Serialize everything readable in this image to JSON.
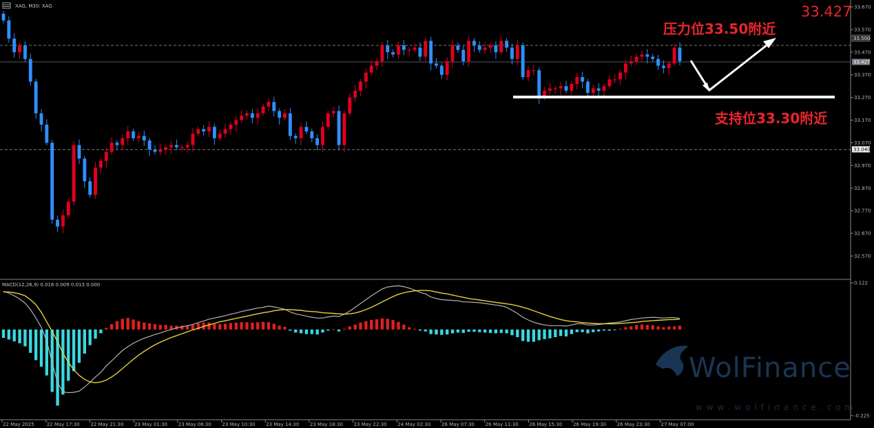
{
  "header": {
    "symbol_label": "XAG, M30: XAG"
  },
  "big_price": "33.427",
  "annotations": {
    "resistance": "压力位33.50附近",
    "support": "支持位33.30附近"
  },
  "price_tags": {
    "resistance_tag": "33.500",
    "current_tag": "33.427",
    "low_tag": "33.040"
  },
  "macd_label": "MACD(12,26,9) 0.016 0.009 0.013 0.000",
  "watermark": {
    "brand": "WolFinance",
    "site": "www.wolfinance.com"
  },
  "colors": {
    "bull": "#e1001e",
    "bear": "#2f8fff",
    "macd_pos": "#e0201e",
    "macd_neg": "#3ad8e0",
    "signal": "#e6d23c",
    "macd_line": "#b4b4b4"
  },
  "chart_data": [
    {
      "type": "candlestick",
      "symbol": "XAG",
      "timeframe": "M30",
      "ylim": [
        32.5,
        33.67
      ],
      "yticks": [
        33.67,
        33.57,
        33.47,
        33.37,
        33.27,
        33.17,
        33.07,
        32.97,
        32.87,
        32.77,
        32.67,
        32.57
      ],
      "ytick_labels": [
        "33.670",
        "33.570",
        "33.470",
        "33.370",
        "33.270",
        "33.170",
        "33.070",
        "32.970",
        "32.870",
        "32.770",
        "32.670",
        "32.570"
      ],
      "xtick_labels": [
        "22 May 2025",
        "22 May 17:30",
        "22 May 21:30",
        "23 May 01:30",
        "23 May 06:30",
        "23 May 10:30",
        "23 May 14:30",
        "23 May 18:30",
        "23 May 22:30",
        "24 May 02:30",
        "26 May 07:30",
        "26 May 11:30",
        "26 May 15:30",
        "26 May 19:30",
        "26 May 23:30",
        "27 May 07:00"
      ],
      "levels": {
        "resistance": 33.5,
        "current": 33.427,
        "low": 33.04,
        "support": 33.285
      },
      "close": [
        33.61,
        33.53,
        33.47,
        33.5,
        33.44,
        33.34,
        33.2,
        33.15,
        33.07,
        32.73,
        32.7,
        32.75,
        32.81,
        33.06,
        33,
        32.9,
        32.84,
        32.96,
        32.99,
        33.03,
        33.07,
        33.06,
        33.09,
        33.12,
        33.09,
        33.1,
        33.08,
        33.04,
        33.03,
        33.04,
        33.05,
        33.06,
        33.05,
        33.05,
        33.06,
        33.11,
        33.13,
        33.12,
        33.14,
        33.09,
        33.11,
        33.13,
        33.15,
        33.17,
        33.19,
        33.2,
        33.18,
        33.2,
        33.23,
        33.25,
        33.21,
        33.18,
        33.2,
        33.1,
        33.09,
        33.14,
        33.12,
        33.09,
        33.06,
        33.14,
        33.2,
        33.21,
        33.06,
        33.2,
        33.27,
        33.3,
        33.34,
        33.38,
        33.41,
        33.43,
        33.5,
        33.47,
        33.46,
        33.5,
        33.48,
        33.48,
        33.49,
        33.45,
        33.52,
        33.42,
        33.41,
        33.37,
        33.43,
        33.5,
        33.48,
        33.43,
        33.52,
        33.5,
        33.48,
        33.49,
        33.5,
        33.47,
        33.52,
        33.49,
        33.44,
        33.5,
        33.36,
        33.39,
        33.39,
        33.27,
        33.3,
        33.31,
        33.31,
        33.32,
        33.3,
        33.33,
        33.36,
        33.34,
        33.29,
        33.31,
        33.3,
        33.32,
        33.35,
        33.35,
        33.38,
        33.42,
        33.43,
        33.45,
        33.46,
        33.45,
        33.44,
        33.41,
        33.4,
        33.42,
        33.49,
        33.43
      ],
      "macd": {
        "ylim": [
          -0.225,
          0.122
        ],
        "yticks": [
          0.122,
          -0.225
        ],
        "ytick_labels": [
          "0.122",
          "-0.225"
        ],
        "histogram": [
          -0.022,
          -0.026,
          -0.031,
          -0.036,
          -0.044,
          -0.061,
          -0.08,
          -0.097,
          -0.12,
          -0.163,
          -0.199,
          -0.17,
          -0.134,
          -0.109,
          -0.087,
          -0.063,
          -0.041,
          -0.024,
          -0.01,
          0.004,
          0.014,
          0.022,
          0.028,
          0.03,
          0.026,
          0.022,
          0.018,
          0.016,
          0.014,
          0.012,
          0.012,
          0.01,
          0.01,
          0.01,
          0.01,
          0.012,
          0.016,
          0.018,
          0.018,
          0.014,
          0.014,
          0.015,
          0.017,
          0.018,
          0.019,
          0.019,
          0.018,
          0.019,
          0.02,
          0.019,
          0.015,
          0.01,
          0.007,
          -0.003,
          -0.008,
          -0.01,
          -0.012,
          -0.012,
          -0.013,
          -0.008,
          -0.003,
          0.001,
          -0.005,
          0.002,
          0.008,
          0.013,
          0.018,
          0.022,
          0.025,
          0.027,
          0.029,
          0.028,
          0.025,
          0.02,
          0.013,
          0.006,
          0.002,
          -0.003,
          -0.005,
          -0.012,
          -0.013,
          -0.014,
          -0.013,
          -0.01,
          -0.008,
          -0.009,
          -0.006,
          -0.006,
          -0.007,
          -0.008,
          -0.009,
          -0.01,
          -0.009,
          -0.01,
          -0.015,
          -0.02,
          -0.03,
          -0.032,
          -0.032,
          -0.028,
          -0.025,
          -0.023,
          -0.02,
          -0.017,
          -0.018,
          -0.012,
          -0.007,
          -0.007,
          -0.01,
          -0.007,
          -0.005,
          -0.003,
          -0.003,
          -0.001,
          0.002,
          0.006,
          0.008,
          0.012,
          0.013,
          0.012,
          0.011,
          0.008,
          0.006,
          0.008,
          0.008,
          0.01
        ],
        "macd_line": [
          0.1,
          0.095,
          0.088,
          0.08,
          0.069,
          0.052,
          0.03,
          0.006,
          -0.03,
          -0.086,
          -0.139,
          -0.163,
          -0.165,
          -0.164,
          -0.161,
          -0.15,
          -0.138,
          -0.124,
          -0.112,
          -0.095,
          -0.082,
          -0.068,
          -0.055,
          -0.045,
          -0.036,
          -0.029,
          -0.023,
          -0.018,
          -0.013,
          -0.009,
          -0.004,
          0,
          0.004,
          0.007,
          0.01,
          0.013,
          0.018,
          0.022,
          0.027,
          0.03,
          0.033,
          0.036,
          0.04,
          0.043,
          0.047,
          0.05,
          0.053,
          0.056,
          0.058,
          0.061,
          0.059,
          0.056,
          0.053,
          0.046,
          0.041,
          0.038,
          0.035,
          0.032,
          0.03,
          0.03,
          0.033,
          0.035,
          0.034,
          0.04,
          0.048,
          0.058,
          0.068,
          0.078,
          0.088,
          0.097,
          0.106,
          0.111,
          0.113,
          0.114,
          0.112,
          0.108,
          0.103,
          0.097,
          0.093,
          0.085,
          0.081,
          0.078,
          0.077,
          0.076,
          0.075,
          0.072,
          0.072,
          0.071,
          0.07,
          0.068,
          0.066,
          0.064,
          0.062,
          0.058,
          0.05,
          0.042,
          0.032,
          0.025,
          0.019,
          0.015,
          0.012,
          0.01,
          0.01,
          0.01,
          0.009,
          0.012,
          0.015,
          0.015,
          0.012,
          0.012,
          0.013,
          0.015,
          0.017,
          0.018,
          0.02,
          0.023,
          0.026,
          0.028,
          0.03,
          0.031,
          0.032,
          0.031,
          0.03,
          0.031,
          0.031,
          0.029
        ],
        "signal_line": [
          0.098,
          0.098,
          0.096,
          0.093,
          0.088,
          0.078,
          0.065,
          0.045,
          0.02,
          -0.005,
          -0.032,
          -0.062,
          -0.086,
          -0.105,
          -0.12,
          -0.13,
          -0.137,
          -0.139,
          -0.137,
          -0.132,
          -0.124,
          -0.114,
          -0.102,
          -0.09,
          -0.078,
          -0.067,
          -0.057,
          -0.048,
          -0.04,
          -0.033,
          -0.027,
          -0.021,
          -0.016,
          -0.011,
          -0.006,
          -0.001,
          0.003,
          0.008,
          0.012,
          0.016,
          0.02,
          0.023,
          0.026,
          0.029,
          0.032,
          0.035,
          0.038,
          0.041,
          0.044,
          0.046,
          0.049,
          0.051,
          0.052,
          0.052,
          0.051,
          0.05,
          0.048,
          0.047,
          0.046,
          0.044,
          0.043,
          0.042,
          0.041,
          0.04,
          0.041,
          0.043,
          0.047,
          0.052,
          0.058,
          0.065,
          0.072,
          0.079,
          0.086,
          0.092,
          0.096,
          0.099,
          0.101,
          0.102,
          0.102,
          0.101,
          0.098,
          0.095,
          0.093,
          0.09,
          0.087,
          0.084,
          0.081,
          0.079,
          0.077,
          0.075,
          0.073,
          0.071,
          0.069,
          0.067,
          0.065,
          0.062,
          0.058,
          0.054,
          0.049,
          0.044,
          0.039,
          0.034,
          0.03,
          0.026,
          0.023,
          0.021,
          0.02,
          0.018,
          0.017,
          0.016,
          0.015,
          0.015,
          0.015,
          0.015,
          0.016,
          0.017,
          0.018,
          0.019,
          0.021,
          0.022,
          0.023,
          0.024,
          0.025,
          0.026,
          0.026,
          0.027
        ]
      }
    }
  ]
}
